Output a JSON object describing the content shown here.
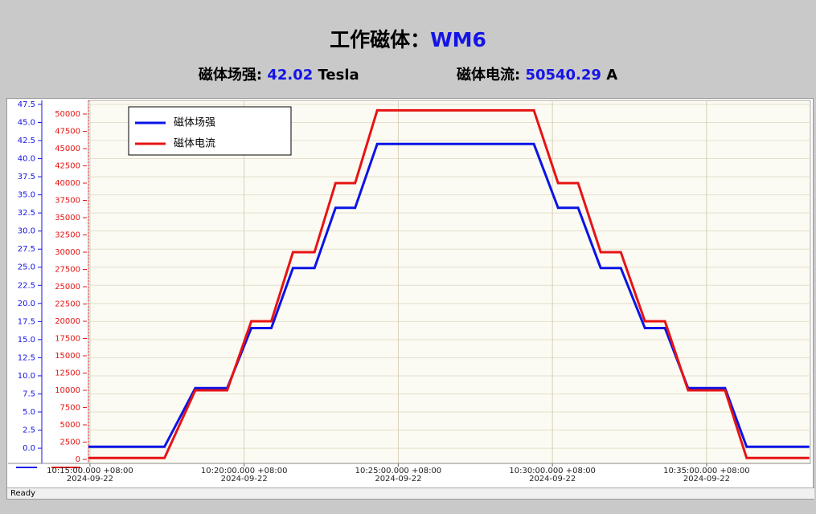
{
  "header": {
    "title": "工作磁体：",
    "magnet": "WM6",
    "field_label": "磁体场强:",
    "field_value": "42.02",
    "field_unit": "Tesla",
    "current_label": "磁体电流:",
    "current_value": "50540.29",
    "current_unit": "A"
  },
  "status": "Ready",
  "chart_data": {
    "type": "line",
    "x": [
      "2024-09-22 10:14:57",
      "2024-09-22 10:17:25",
      "2024-09-22 10:18:25",
      "2024-09-22 10:19:27",
      "2024-09-22 10:20:14",
      "2024-09-22 10:20:53",
      "2024-09-22 10:21:35",
      "2024-09-22 10:22:17",
      "2024-09-22 10:22:58",
      "2024-09-22 10:23:36",
      "2024-09-22 10:24:19",
      "2024-09-22 10:29:24",
      "2024-09-22 10:30:11",
      "2024-09-22 10:30:50",
      "2024-09-22 10:31:34",
      "2024-09-22 10:32:13",
      "2024-09-22 10:33:00",
      "2024-09-22 10:33:39",
      "2024-09-22 10:34:24",
      "2024-09-22 10:35:36",
      "2024-09-22 10:36:18",
      "2024-09-22 10:38:20"
    ],
    "series": [
      {
        "name": "磁体场强",
        "color": "#0a14e6",
        "values": [
          0.2,
          0.2,
          8.3,
          8.3,
          16.6,
          16.6,
          24.9,
          24.9,
          33.2,
          33.2,
          42.02,
          42.02,
          33.2,
          33.2,
          24.9,
          24.9,
          16.6,
          16.6,
          8.3,
          8.3,
          0.2,
          0.2
        ]
      },
      {
        "name": "磁体电流",
        "color": "#e61414",
        "axis": "y2",
        "values": [
          200,
          200,
          10000,
          10000,
          20000,
          20000,
          30000,
          30000,
          40000,
          40000,
          50540.29,
          50540.29,
          40000,
          40000,
          30000,
          30000,
          20000,
          20000,
          10000,
          10000,
          200,
          200
        ]
      }
    ],
    "xlim": [
      "2024-09-22 10:14:57",
      "2024-09-22 10:38:22"
    ],
    "xticks": [
      {
        "value": "2024-09-22 10:15:00",
        "label": "10:15:00.000 +08:00\n2024-09-22"
      },
      {
        "value": "2024-09-22 10:20:00",
        "label": "10:20:00.000 +08:00\n2024-09-22"
      },
      {
        "value": "2024-09-22 10:25:00",
        "label": "10:25:00.000 +08:00\n2024-09-22"
      },
      {
        "value": "2024-09-22 10:30:00",
        "label": "10:30:00.000 +08:00\n2024-09-22"
      },
      {
        "value": "2024-09-22 10:35:00",
        "label": "10:35:00.000 +08:00\n2024-09-22"
      }
    ],
    "ylim": [
      -2.1,
      48.05
    ],
    "yticks": [
      {
        "value": 0,
        "label": "0.0"
      },
      2.5,
      {
        "value": 5,
        "label": "5.0"
      },
      7.5,
      {
        "value": 10,
        "label": "10.0"
      },
      12.5,
      {
        "value": 15,
        "label": "15.0"
      },
      17.5,
      {
        "value": 20,
        "label": "20.0"
      },
      22.5,
      {
        "value": 25,
        "label": "25.0"
      },
      27.5,
      {
        "value": 30,
        "label": "30.0"
      },
      32.5,
      {
        "value": 35,
        "label": "35.0"
      },
      37.5,
      {
        "value": 40,
        "label": "40.0"
      },
      42.5,
      {
        "value": 45,
        "label": "45.0"
      },
      47.5
    ],
    "y2lim": [
      -580,
      51980
    ],
    "y2ticks": [
      0,
      2500,
      5000,
      7500,
      10000,
      12500,
      15000,
      17500,
      20000,
      22500,
      25000,
      27500,
      30000,
      32500,
      35000,
      37500,
      40000,
      42500,
      45000,
      47500,
      50000
    ],
    "grid": true,
    "legend": "upper left"
  }
}
